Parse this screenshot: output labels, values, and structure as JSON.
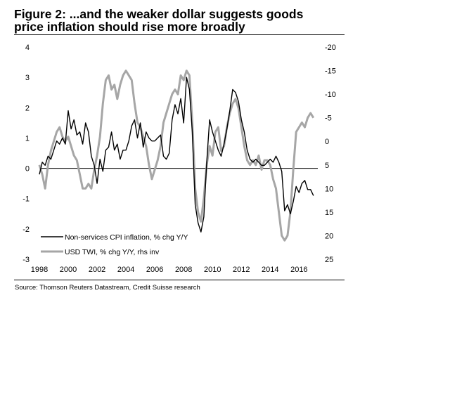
{
  "figure": {
    "title_line1": "Figure 2: ...and the weaker dollar suggests goods",
    "title_line2": "price inflation should rise more broadly",
    "source": "Source: Thomson Reuters Datastream, Credit Suisse research"
  },
  "colors": {
    "cpi": "#000000",
    "twi": "#a6a6a6",
    "axis": "#000000"
  },
  "chart_data": {
    "type": "line",
    "title": "...and the weaker dollar suggests goods price inflation should rise more broadly",
    "xlabel": "",
    "ylabel_left": "",
    "ylabel_right": "",
    "xlim": [
      1998,
      2017.3
    ],
    "ylim_left": [
      -3,
      4
    ],
    "ylim_right": [
      25,
      -20
    ],
    "x_ticks": [
      "1998",
      "2000",
      "2002",
      "2004",
      "2006",
      "2008",
      "2010",
      "2012",
      "2014",
      "2016"
    ],
    "y_ticks_left": [
      "4",
      "3",
      "2",
      "1",
      "0",
      "-1",
      "-2",
      "-3"
    ],
    "y_ticks_right": [
      "-20",
      "-15",
      "-10",
      "-5",
      "0",
      "5",
      "10",
      "15",
      "20",
      "25"
    ],
    "legend_position": "bottom-left",
    "series": [
      {
        "name": "Non-services CPI inflation, % chg Y/Y",
        "axis": "left",
        "color": "#000000",
        "x": [
          1998.0,
          1998.2,
          1998.4,
          1998.6,
          1998.8,
          1999.0,
          1999.2,
          1999.4,
          1999.6,
          1999.8,
          2000.0,
          2000.2,
          2000.4,
          2000.6,
          2000.8,
          2001.0,
          2001.2,
          2001.4,
          2001.6,
          2001.8,
          2002.0,
          2002.2,
          2002.4,
          2002.6,
          2002.8,
          2003.0,
          2003.2,
          2003.4,
          2003.6,
          2003.8,
          2004.0,
          2004.2,
          2004.4,
          2004.6,
          2004.8,
          2005.0,
          2005.2,
          2005.4,
          2005.6,
          2005.8,
          2006.0,
          2006.2,
          2006.4,
          2006.6,
          2006.8,
          2007.0,
          2007.2,
          2007.4,
          2007.6,
          2007.8,
          2008.0,
          2008.2,
          2008.4,
          2008.6,
          2008.8,
          2009.0,
          2009.2,
          2009.4,
          2009.6,
          2009.8,
          2010.0,
          2010.2,
          2010.4,
          2010.6,
          2010.8,
          2011.0,
          2011.2,
          2011.4,
          2011.6,
          2011.8,
          2012.0,
          2012.2,
          2012.4,
          2012.6,
          2012.8,
          2013.0,
          2013.2,
          2013.4,
          2013.6,
          2013.8,
          2014.0,
          2014.2,
          2014.4,
          2014.6,
          2014.8,
          2015.0,
          2015.2,
          2015.4,
          2015.6,
          2015.8,
          2016.0,
          2016.2,
          2016.4,
          2016.6,
          2016.8,
          2017.0
        ],
        "values": [
          -0.2,
          0.2,
          0.1,
          0.4,
          0.3,
          0.6,
          0.9,
          0.8,
          1.0,
          0.8,
          1.9,
          1.3,
          1.6,
          1.1,
          1.2,
          0.8,
          1.5,
          1.2,
          0.4,
          0.1,
          -0.5,
          0.3,
          -0.1,
          0.6,
          0.7,
          1.2,
          0.6,
          0.8,
          0.3,
          0.6,
          0.6,
          0.9,
          1.4,
          1.6,
          1.0,
          1.5,
          0.7,
          1.2,
          1.0,
          0.9,
          0.9,
          1.0,
          1.1,
          0.4,
          0.3,
          0.5,
          1.6,
          2.1,
          1.8,
          2.3,
          1.5,
          3.0,
          2.6,
          1.2,
          -1.2,
          -1.8,
          -2.1,
          -1.6,
          0.2,
          1.6,
          1.2,
          0.9,
          0.6,
          0.4,
          0.8,
          1.3,
          1.9,
          2.6,
          2.5,
          2.2,
          1.6,
          1.2,
          0.6,
          0.3,
          0.2,
          0.3,
          0.2,
          0.1,
          0.1,
          0.2,
          0.3,
          0.2,
          0.4,
          0.2,
          -0.1,
          -1.4,
          -1.2,
          -1.5,
          -1.1,
          -0.6,
          -0.8,
          -0.5,
          -0.4,
          -0.7,
          -0.7,
          -0.9
        ]
      },
      {
        "name": "USD TWI, % chg Y/Y, rhs inv",
        "axis": "right",
        "color": "#a6a6a6",
        "x": [
          1998.0,
          1998.2,
          1998.4,
          1998.6,
          1998.8,
          1999.0,
          1999.2,
          1999.4,
          1999.6,
          1999.8,
          2000.0,
          2000.2,
          2000.4,
          2000.6,
          2000.8,
          2001.0,
          2001.2,
          2001.4,
          2001.6,
          2001.8,
          2002.0,
          2002.2,
          2002.4,
          2002.6,
          2002.8,
          2003.0,
          2003.2,
          2003.4,
          2003.6,
          2003.8,
          2004.0,
          2004.2,
          2004.4,
          2004.6,
          2004.8,
          2005.0,
          2005.2,
          2005.4,
          2005.6,
          2005.8,
          2006.0,
          2006.2,
          2006.4,
          2006.6,
          2006.8,
          2007.0,
          2007.2,
          2007.4,
          2007.6,
          2007.8,
          2008.0,
          2008.2,
          2008.4,
          2008.6,
          2008.8,
          2009.0,
          2009.2,
          2009.4,
          2009.6,
          2009.8,
          2010.0,
          2010.2,
          2010.4,
          2010.6,
          2010.8,
          2011.0,
          2011.2,
          2011.4,
          2011.6,
          2011.8,
          2012.0,
          2012.2,
          2012.4,
          2012.6,
          2012.8,
          2013.0,
          2013.2,
          2013.4,
          2013.6,
          2013.8,
          2014.0,
          2014.2,
          2014.4,
          2014.6,
          2014.8,
          2015.0,
          2015.2,
          2015.4,
          2015.6,
          2015.8,
          2016.0,
          2016.2,
          2016.4,
          2016.6,
          2016.8,
          2017.0
        ],
        "values": [
          5,
          7,
          10,
          5,
          2,
          0,
          -2,
          -3,
          -1,
          0,
          -1,
          1,
          3,
          4,
          7,
          10,
          10,
          9,
          10,
          6,
          3,
          -1,
          -8,
          -13,
          -14,
          -11,
          -12,
          -9,
          -12,
          -14,
          -15,
          -14,
          -13,
          -8,
          -4,
          -3,
          -1,
          1,
          5,
          8,
          6,
          4,
          1,
          -4,
          -6,
          -8,
          -10,
          -11,
          -10,
          -14,
          -13,
          -15,
          -14,
          -4,
          10,
          15,
          17,
          12,
          5,
          1,
          3,
          -2,
          -3,
          2,
          1,
          -3,
          -6,
          -8,
          -9,
          -7,
          -3,
          1,
          4,
          5,
          4,
          5,
          3,
          6,
          4,
          4,
          5,
          8,
          10,
          15,
          20,
          21,
          20,
          15,
          6,
          -2,
          -3,
          -4,
          -3,
          -5,
          -6,
          -5
        ]
      }
    ]
  },
  "legend": {
    "cpi_label": "Non-services CPI inflation, % chg Y/Y",
    "twi_label": "USD TWI, % chg Y/Y, rhs inv"
  }
}
